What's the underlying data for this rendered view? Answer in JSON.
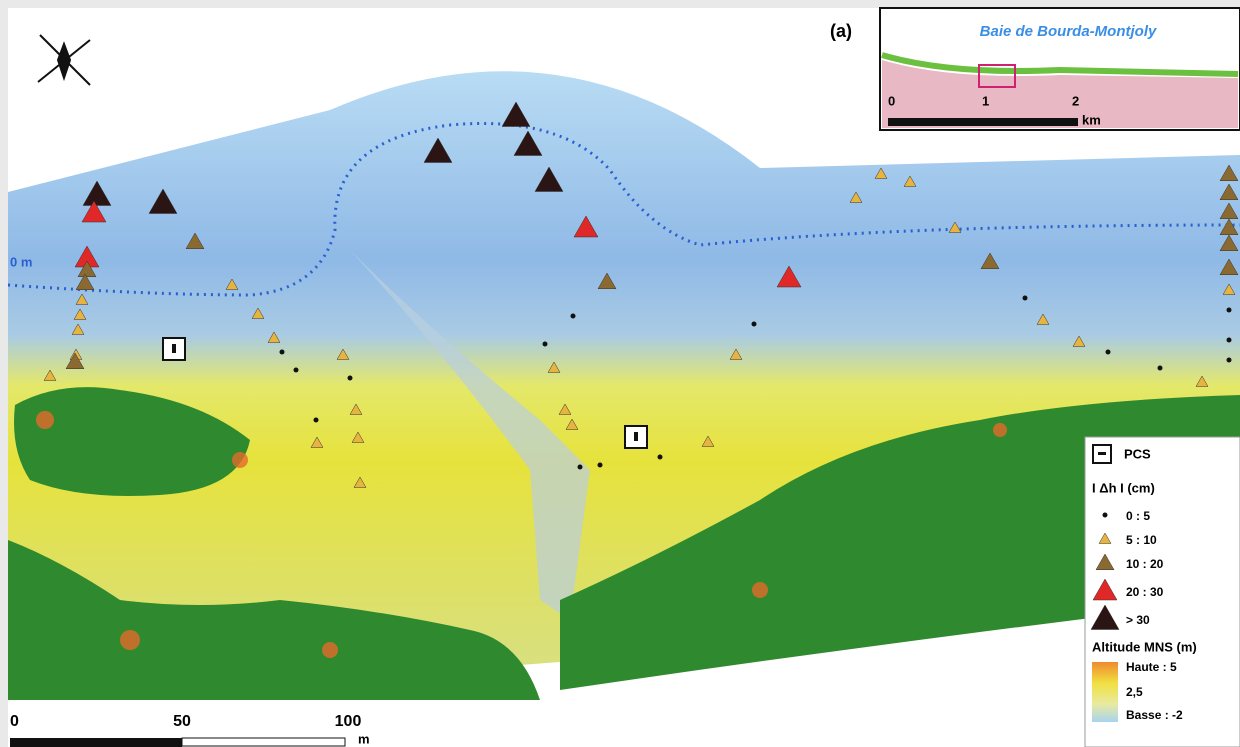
{
  "panel_label": "(a)",
  "inset": {
    "title": "Baie de Bourda-Montjoly",
    "scale_labels": [
      "0",
      "1",
      "2"
    ],
    "scale_unit": "km"
  },
  "contour_label": "0 m",
  "legend": {
    "pcs": "PCS",
    "dh_title": "I Δh I (cm)",
    "dh_classes": [
      "0 : 5",
      "5 : 10",
      "10 : 20",
      "20 : 30",
      "> 30"
    ],
    "altitude_title": "Altitude MNS (m)",
    "altitude_labels": [
      "Haute : 5",
      "2,5",
      "Basse : -2"
    ]
  },
  "scale_bar": {
    "labels": [
      "0",
      "50",
      "100"
    ],
    "unit": "m"
  }
}
